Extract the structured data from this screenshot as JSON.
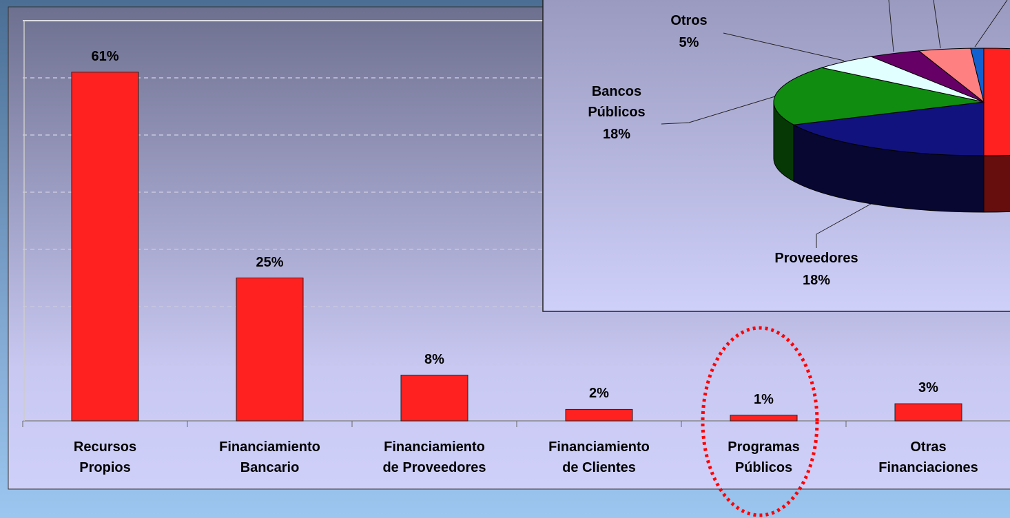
{
  "chart_data": [
    {
      "type": "bar",
      "categories": [
        "Recursos\nPropios",
        "Financiamiento\nBancario",
        "Financiamiento\nde Proveedores",
        "Financiamiento\nde Clientes",
        "Programas\nPúblicos",
        "Otras\nFinanciaciones"
      ],
      "values": [
        61,
        25,
        8,
        2,
        1,
        3
      ],
      "value_labels": [
        "61%",
        "25%",
        "8%",
        "2%",
        "1%",
        "3%"
      ],
      "color": "#ff2020",
      "ylim": [
        0,
        70
      ],
      "yticks": [
        0,
        10,
        20,
        30,
        40,
        50,
        60,
        70
      ],
      "grid": true
    },
    {
      "type": "pie",
      "categories": [
        null,
        "Proveedores",
        "Bancos\nPúblicos",
        "Otros",
        null,
        null,
        null
      ],
      "values": [
        50,
        18,
        18,
        5,
        4,
        4,
        1
      ],
      "value_labels": [
        null,
        "18%",
        "18%",
        "5%",
        null,
        null,
        null
      ],
      "colors": [
        "#ff2020",
        "#12127e",
        "#108c10",
        "#e2ffff",
        "#660066",
        "#ff8080",
        "#1060d0"
      ]
    }
  ]
}
